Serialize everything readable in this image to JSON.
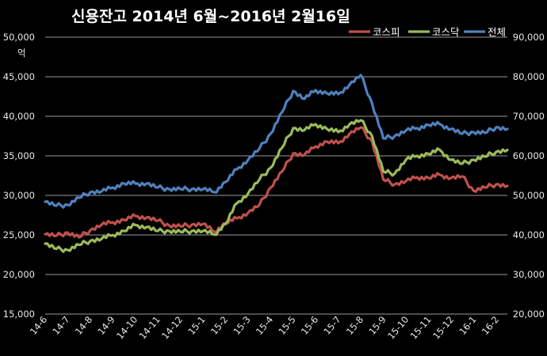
{
  "chart_data": {
    "type": "line",
    "title": "신용잔고 2014년 6월~2016년 2월16일",
    "y_left_unit": "억",
    "y_left_ticks": [
      "50,000",
      "45,000",
      "40,000",
      "35,000",
      "30,000",
      "25,000",
      "20,000",
      "15,000"
    ],
    "y_right_ticks": [
      "90,000",
      "80,000",
      "70,000",
      "60,000",
      "50,000",
      "40,000",
      "30,000",
      "20,000"
    ],
    "ylim_left": [
      15000,
      50000
    ],
    "ylim_right": [
      20000,
      90000
    ],
    "x_tick_labels": [
      "14-6",
      "14-7",
      "14-8",
      "14-9",
      "14-10",
      "14-11",
      "14-12",
      "15-1",
      "15-2",
      "15-3",
      "15-4",
      "15-5",
      "15-6",
      "15-7",
      "15-8",
      "15-9",
      "15-10",
      "15-11",
      "15-12",
      "16-1",
      "16-2"
    ],
    "x": [
      "14-6",
      "14-6b",
      "14-7",
      "14-7b",
      "14-8",
      "14-8b",
      "14-9",
      "14-9b",
      "14-10",
      "14-10b",
      "14-11",
      "14-11b",
      "14-12",
      "14-12b",
      "15-1",
      "15-1b",
      "15-2",
      "15-2b",
      "15-3",
      "15-3b",
      "15-4",
      "15-4b",
      "15-5",
      "15-5b",
      "15-6",
      "15-6b",
      "15-7",
      "15-7b",
      "15-8",
      "15-8b",
      "15-9",
      "15-9b",
      "15-10",
      "15-10b",
      "15-11",
      "15-11b",
      "15-12",
      "15-12b",
      "16-1",
      "16-1b",
      "16-2",
      "16-2b"
    ],
    "grid": true,
    "legend_position": "top-right",
    "series": [
      {
        "name": "코스피",
        "axis": "left",
        "color": "#c0504d",
        "values": [
          25100,
          24900,
          25300,
          24700,
          25600,
          26300,
          26600,
          26900,
          27400,
          27200,
          26800,
          26200,
          26100,
          26300,
          26400,
          25400,
          26500,
          27100,
          27800,
          28800,
          31000,
          33000,
          35300,
          35100,
          36200,
          36800,
          36600,
          37800,
          38600,
          36800,
          32000,
          31400,
          31800,
          32300,
          32200,
          32600,
          32200,
          32400,
          30600,
          31000,
          31400,
          31200
        ]
      },
      {
        "name": "코스닥",
        "axis": "right",
        "color": "#9bbb59",
        "values": [
          37800,
          36500,
          36200,
          37500,
          38500,
          39000,
          40000,
          41000,
          42500,
          42000,
          41000,
          41000,
          40800,
          41000,
          41000,
          40100,
          42800,
          48000,
          50500,
          54000,
          57000,
          62000,
          67000,
          66500,
          68000,
          66800,
          66000,
          68000,
          69000,
          65000,
          56000,
          55500,
          59000,
          60000,
          60500,
          61500,
          59000,
          58000,
          59000,
          59800,
          61000,
          61500
        ]
      },
      {
        "name": "전체",
        "axis": "left",
        "color": "#4f81bd",
        "values": [
          29200,
          28700,
          28800,
          29700,
          30400,
          30500,
          31000,
          31500,
          31500,
          31500,
          31000,
          30800,
          30800,
          30800,
          30800,
          30400,
          31700,
          33300,
          34500,
          35900,
          37800,
          40500,
          43200,
          42200,
          43300,
          42900,
          42800,
          44000,
          45200,
          41600,
          37200,
          37500,
          38200,
          38500,
          38900,
          39000,
          38400,
          37800,
          38000,
          37900,
          38600,
          38400
        ]
      }
    ]
  }
}
